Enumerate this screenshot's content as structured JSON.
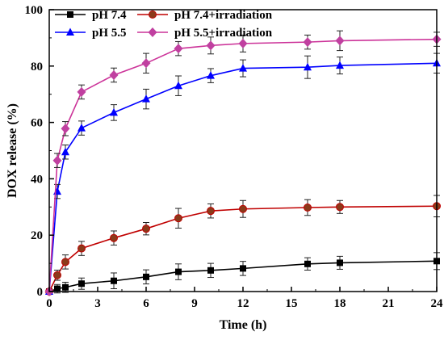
{
  "chart_data": {
    "type": "line",
    "xlabel": "Time (h)",
    "ylabel": "DOX release (%)",
    "xlim": [
      0,
      24
    ],
    "ylim": [
      0,
      100
    ],
    "x_ticks": [
      0,
      3,
      6,
      9,
      12,
      15,
      18,
      21,
      24
    ],
    "y_ticks": [
      0,
      20,
      40,
      60,
      80,
      100
    ],
    "grid": false,
    "legend_position": "top-left",
    "x": [
      0,
      0.5,
      1,
      2,
      4,
      6,
      8,
      10,
      12,
      16,
      18,
      24
    ],
    "series": [
      {
        "name": "pH 7.4",
        "color": "#000000",
        "marker": "square",
        "values": [
          0,
          1.0,
          1.5,
          2.8,
          3.8,
          5.2,
          7.0,
          7.5,
          8.2,
          9.8,
          10.2,
          10.8
        ],
        "errors": [
          0,
          1.5,
          1.8,
          2.0,
          2.8,
          2.5,
          2.8,
          2.5,
          2.5,
          2.2,
          2.3,
          3.0
        ]
      },
      {
        "name": "pH 7.4+irradiation",
        "color": "#c00000",
        "marker": "circle",
        "values": [
          0,
          5.8,
          10.5,
          15.3,
          19.0,
          22.3,
          26.0,
          28.6,
          29.3,
          29.8,
          30.0,
          30.3
        ],
        "errors": [
          0,
          1.8,
          2.5,
          2.5,
          2.5,
          2.2,
          3.5,
          2.5,
          3.0,
          2.8,
          2.3,
          3.8
        ]
      },
      {
        "name": "pH 5.5",
        "color": "#0000ff",
        "marker": "triangle",
        "values": [
          0,
          35.5,
          49.5,
          58.0,
          63.5,
          68.3,
          73.0,
          76.6,
          79.2,
          79.6,
          80.2,
          81.0
        ],
        "errors": [
          0,
          2.5,
          2.5,
          2.5,
          2.8,
          3.5,
          3.5,
          2.5,
          3.0,
          4.0,
          3.0,
          3.5
        ]
      },
      {
        "name": "pH 5.5+irradiation",
        "color": "#cc3399",
        "marker": "diamond",
        "values": [
          0,
          46.5,
          57.8,
          70.8,
          76.8,
          81.0,
          86.2,
          87.3,
          88.0,
          88.5,
          89.0,
          89.5
        ],
        "errors": [
          0,
          2.5,
          2.5,
          2.5,
          2.5,
          3.5,
          2.5,
          3.0,
          3.0,
          2.5,
          3.5,
          2.5
        ]
      }
    ]
  }
}
